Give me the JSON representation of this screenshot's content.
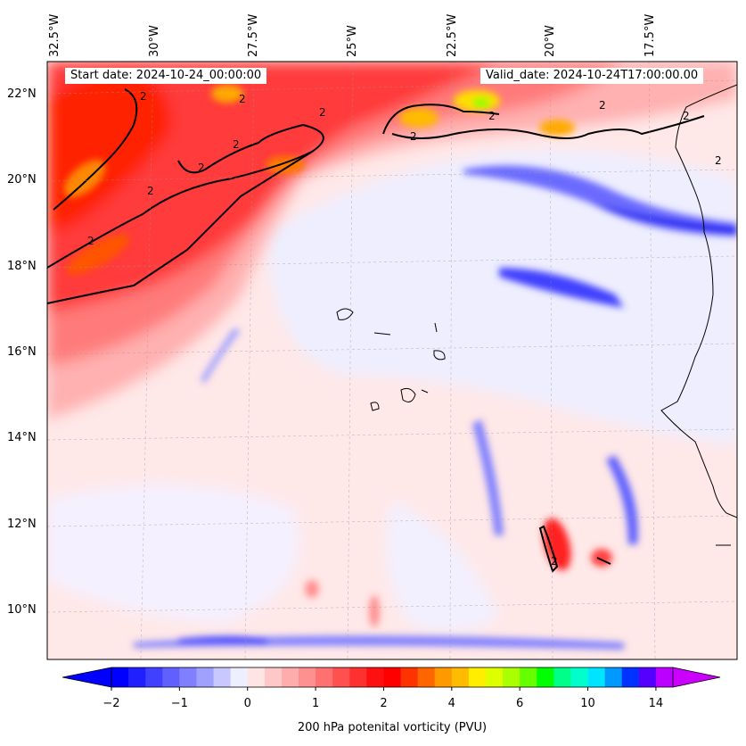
{
  "map": {
    "lon_labels": [
      "32.5°W",
      "30°W",
      "27.5°W",
      "25°W",
      "22.5°W",
      "20°W",
      "17.5°W"
    ],
    "lat_labels": [
      "22°N",
      "20°N",
      "18°N",
      "16°N",
      "14°N",
      "12°N",
      "10°N"
    ],
    "start_label": "Start date: 2024-10-24_00:00:00",
    "valid_label": "Valid_date: 2024-10-24T17:00:00.00",
    "contour_label": "2"
  },
  "colorbar": {
    "ticks": [
      "−2",
      "−1",
      "0",
      "1",
      "2",
      "4",
      "6",
      "10",
      "14"
    ],
    "title": "200 hPa potenital vorticity (PVU)",
    "colors": [
      "#0000ff",
      "#2020ff",
      "#4040ff",
      "#6060ff",
      "#8080ff",
      "#a0a0ff",
      "#c8c8ff",
      "#eeeeff",
      "#ffe4e4",
      "#ffc8c8",
      "#ffacac",
      "#ff9090",
      "#ff7070",
      "#ff5050",
      "#ff3030",
      "#ff1010",
      "#ff0000",
      "#ff3300",
      "#ff6600",
      "#ff9900",
      "#ffbb00",
      "#ffee00",
      "#ddff00",
      "#aaff00",
      "#66ff00",
      "#00ff00",
      "#00ff88",
      "#00ffcc",
      "#00e5ff",
      "#0099ff",
      "#0033ff",
      "#5500ff",
      "#bb00ff"
    ],
    "extend_colors": {
      "low": "#0000ff",
      "high": "#cc00ff"
    }
  }
}
